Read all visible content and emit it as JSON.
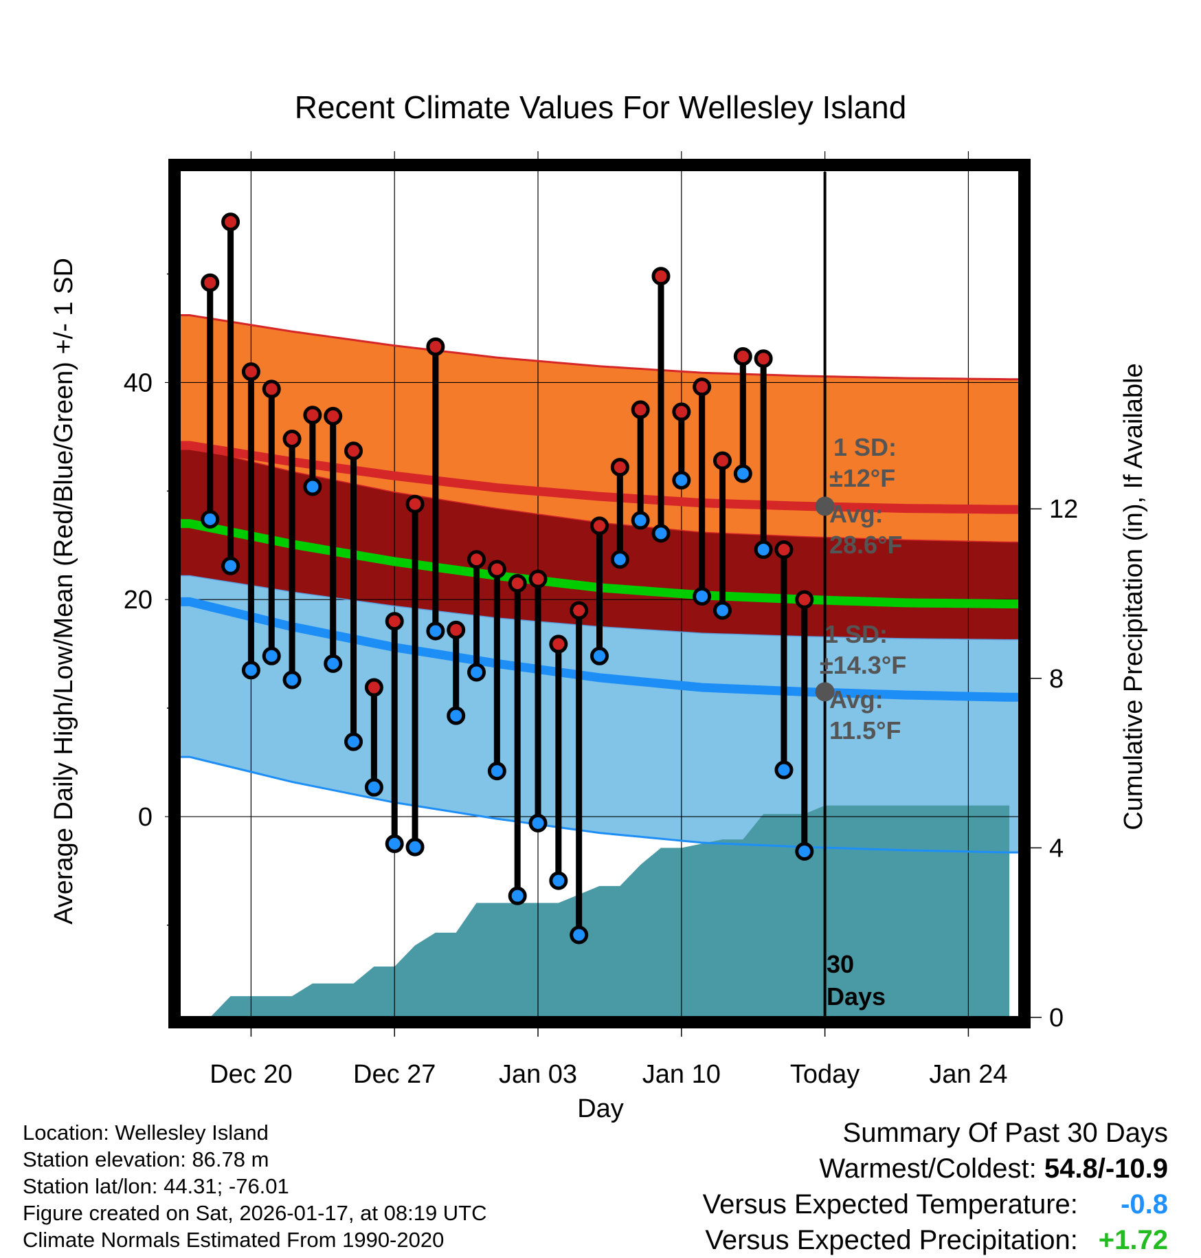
{
  "chart_data": {
    "type": "line",
    "title": "Recent Climate Values For Wellesley Island",
    "xlabel": "Day",
    "ylabel": "Average Daily High/Low/Mean (Red/Blue/Green) +/- 1 SD",
    "y2label": "Cumulative Precipitation (in), If Available",
    "xlim": [
      -0.5,
      40.5
    ],
    "ylim": [
      -18.5,
      59.6
    ],
    "y2lim": [
      0,
      20
    ],
    "x_ticks": [
      {
        "x": 3,
        "label": "Dec 20"
      },
      {
        "x": 10,
        "label": "Dec 27"
      },
      {
        "x": 17,
        "label": "Jan 03"
      },
      {
        "x": 24,
        "label": "Jan 10"
      },
      {
        "x": 31,
        "label": "Today"
      },
      {
        "x": 38,
        "label": "Jan 24"
      }
    ],
    "y_ticks": [
      0,
      20,
      40
    ],
    "y_minor_ticks": [
      -10,
      10,
      30,
      50
    ],
    "y2_ticks": [
      0,
      4,
      8,
      12
    ],
    "today_x": 31,
    "days_label": [
      "30",
      "Days"
    ],
    "normals": {
      "x": [
        0,
        5,
        10,
        15,
        20,
        25,
        30,
        35,
        40
      ],
      "high_avg": [
        34.2,
        32.7,
        31.4,
        30.3,
        29.5,
        28.9,
        28.6,
        28.4,
        28.3
      ],
      "high_sd": 12.0,
      "low_avg": [
        19.8,
        17.5,
        15.6,
        14.1,
        12.8,
        11.9,
        11.5,
        11.2,
        11.0
      ],
      "low_sd": 14.3,
      "mean_avg": [
        27.0,
        25.1,
        23.5,
        22.2,
        21.1,
        20.4,
        20.0,
        19.7,
        19.6
      ]
    },
    "daily": {
      "x": [
        1,
        2,
        3,
        4,
        5,
        6,
        7,
        8,
        9,
        10,
        11,
        12,
        13,
        14,
        15,
        16,
        17,
        18,
        19,
        20,
        21,
        22,
        23,
        24,
        25,
        26,
        27,
        28,
        29,
        30
      ],
      "high": [
        49.2,
        54.8,
        41.0,
        39.4,
        34.8,
        37.0,
        36.9,
        33.7,
        11.9,
        18.0,
        28.8,
        43.3,
        17.2,
        23.7,
        22.8,
        21.5,
        21.9,
        15.9,
        19.0,
        26.8,
        32.2,
        37.5,
        49.8,
        37.3,
        39.6,
        32.8,
        42.4,
        42.2,
        24.6,
        20.0
      ],
      "low": [
        27.4,
        23.1,
        13.5,
        14.8,
        12.6,
        30.4,
        14.1,
        6.9,
        2.7,
        -2.5,
        -2.8,
        17.1,
        9.3,
        13.3,
        4.2,
        -7.3,
        -0.6,
        -5.9,
        -10.9,
        14.8,
        23.7,
        27.3,
        26.1,
        31.0,
        20.3,
        19.0,
        31.6,
        24.6,
        4.3,
        -3.2
      ]
    },
    "precip": {
      "x": [
        0,
        1,
        2,
        3,
        4,
        5,
        6,
        7,
        8,
        9,
        10,
        11,
        12,
        13,
        14,
        15,
        16,
        17,
        18,
        19,
        20,
        21,
        22,
        23,
        24,
        25,
        26,
        27,
        28,
        29,
        30,
        31,
        40
      ],
      "cum": [
        0,
        0,
        0.5,
        0.5,
        0.5,
        0.5,
        0.8,
        0.8,
        0.8,
        1.2,
        1.2,
        1.7,
        2.0,
        2.0,
        2.7,
        2.7,
        2.7,
        2.7,
        2.7,
        2.9,
        3.1,
        3.1,
        3.6,
        4.0,
        4.0,
        4.1,
        4.2,
        4.2,
        4.8,
        4.8,
        4.8,
        5.0,
        5.0
      ]
    },
    "annotations": {
      "high_sd_label": [
        "1 SD:",
        "±12°F"
      ],
      "high_avg_label": [
        "Avg:",
        "28.6°F"
      ],
      "low_sd_label": [
        "1 SD:",
        "±14.3°F"
      ],
      "low_avg_label": [
        "Avg:",
        "11.5°F"
      ],
      "high_avg_value": 28.6,
      "low_avg_value": 11.5
    }
  },
  "colors": {
    "high_band": "#f47b2a",
    "high_line": "#d62728",
    "overlap_band": "#921010",
    "low_band": "#82c3e8",
    "low_line": "#1e8ef7",
    "mean_line": "#00cc00",
    "precip": "#4a9aa5",
    "high_marker": "#cc2222",
    "low_marker": "#1e90ff",
    "annotation": "#555555",
    "cooler": "#1e90ff",
    "wetter": "#22bb22"
  },
  "footer": {
    "location": "Location: Wellesley Island",
    "elevation": "Station elevation: 86.78 m",
    "latlon": "Station lat/lon: 44.31; -76.01",
    "created": "Figure created on Sat, 2026-01-17, at 08:19 UTC",
    "normals": "Climate Normals Estimated From 1990-2020"
  },
  "summary": {
    "title": "Summary Of Past 30 Days",
    "warm_cold_label": "Warmest/Coldest:",
    "warm_cold_value": "54.8/-10.9",
    "temp_label": "Versus Expected Temperature:",
    "temp_value": "-0.8",
    "precip_label": "Versus Expected Precipitation:",
    "precip_value": "+1.72"
  }
}
